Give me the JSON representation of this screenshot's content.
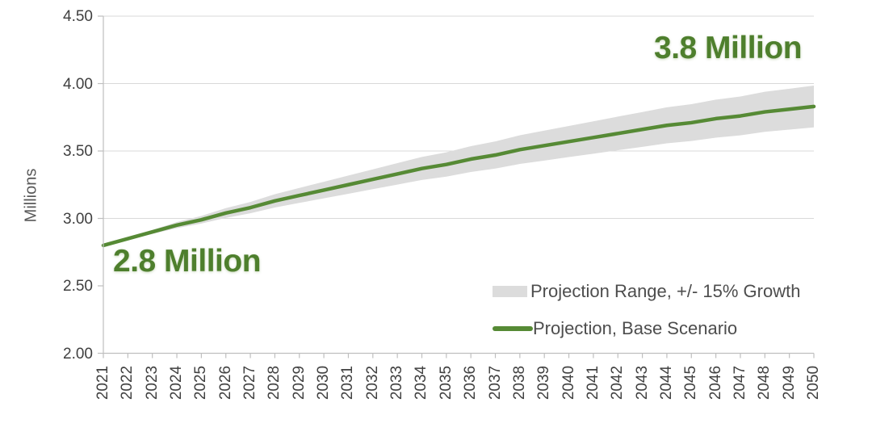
{
  "colors": {
    "band": "#dcdcdc",
    "line": "#568a35",
    "annotation_green": "#4e7f2d",
    "gridline": "#d9d9d9",
    "axis": "#bfbfbf",
    "tick": "#bfbfbf",
    "tick_text": "#404040",
    "axis_title_text": "#595959",
    "legend_text": "#4d4d4d"
  },
  "chart_data": {
    "type": "line",
    "title": "",
    "xlabel": "",
    "ylabel": "Millions",
    "x": [
      2021,
      2022,
      2023,
      2024,
      2025,
      2026,
      2027,
      2028,
      2029,
      2030,
      2031,
      2032,
      2033,
      2034,
      2035,
      2036,
      2037,
      2038,
      2039,
      2040,
      2041,
      2042,
      2043,
      2044,
      2045,
      2046,
      2047,
      2048,
      2049,
      2050
    ],
    "series": [
      {
        "name": "Projection Range, +/- 15% Growth",
        "type": "band",
        "color": "#dcdcdc",
        "upper": [
          2.8,
          2.858,
          2.915,
          2.973,
          3.019,
          3.076,
          3.122,
          3.18,
          3.226,
          3.272,
          3.318,
          3.364,
          3.41,
          3.456,
          3.49,
          3.536,
          3.571,
          3.617,
          3.651,
          3.686,
          3.72,
          3.755,
          3.789,
          3.824,
          3.847,
          3.881,
          3.904,
          3.939,
          3.962,
          3.985
        ],
        "lower": [
          2.8,
          2.843,
          2.885,
          2.928,
          2.962,
          3.004,
          3.038,
          3.081,
          3.115,
          3.149,
          3.183,
          3.217,
          3.251,
          3.285,
          3.31,
          3.344,
          3.37,
          3.404,
          3.429,
          3.455,
          3.48,
          3.506,
          3.531,
          3.557,
          3.574,
          3.599,
          3.616,
          3.642,
          3.659,
          3.675
        ]
      },
      {
        "name": "Projection, Base Scenario",
        "type": "line",
        "color": "#568a35",
        "values": [
          2.8,
          2.85,
          2.9,
          2.95,
          2.99,
          3.04,
          3.08,
          3.13,
          3.17,
          3.21,
          3.25,
          3.29,
          3.33,
          3.37,
          3.4,
          3.44,
          3.47,
          3.51,
          3.54,
          3.57,
          3.6,
          3.63,
          3.66,
          3.69,
          3.71,
          3.74,
          3.76,
          3.79,
          3.81,
          3.83
        ]
      }
    ],
    "ylim": [
      2.0,
      4.5
    ],
    "ytick_values": [
      2.0,
      2.5,
      3.0,
      3.5,
      4.0,
      4.5
    ],
    "ytick_labels": [
      "2.00",
      "2.50",
      "3.00",
      "3.50",
      "4.00",
      "4.50"
    ],
    "gridlines_at": [
      3.0,
      3.5,
      4.0,
      4.5
    ],
    "legend_position": "inside-bottom-right",
    "annotations": [
      {
        "text": "2.8 Million",
        "year": 2021,
        "value": 2.8
      },
      {
        "text": "3.8 Million",
        "year": 2050,
        "value": 3.8
      }
    ]
  }
}
